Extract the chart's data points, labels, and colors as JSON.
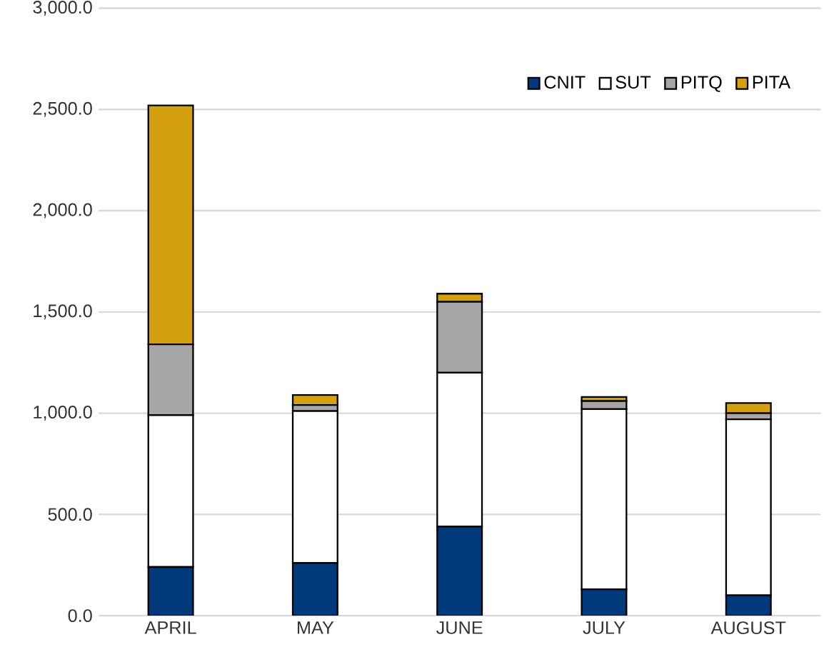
{
  "chart_data": {
    "type": "bar",
    "stacked": true,
    "categories": [
      "APRIL",
      "MAY",
      "JUNE",
      "JULY",
      "AUGUST"
    ],
    "series": [
      {
        "name": "CNIT",
        "color": "#003a7d",
        "values": [
          240,
          260,
          440,
          130,
          100
        ]
      },
      {
        "name": "SUT",
        "color": "#ffffff",
        "values": [
          750,
          750,
          760,
          890,
          870
        ]
      },
      {
        "name": "PITQ",
        "color": "#a6a6a6",
        "values": [
          350,
          30,
          350,
          40,
          30
        ]
      },
      {
        "name": "PITA",
        "color": "#d4a010",
        "values": [
          1180,
          50,
          40,
          20,
          50
        ]
      }
    ],
    "ylim": [
      0,
      3000
    ],
    "yticks": [
      {
        "value": 0,
        "label": "0.0"
      },
      {
        "value": 500,
        "label": "500.0"
      },
      {
        "value": 1000,
        "label": "1,000.0"
      },
      {
        "value": 1500,
        "label": "1,500.0"
      },
      {
        "value": 2000,
        "label": "2,000.0"
      },
      {
        "value": 2500,
        "label": "2,500.0"
      },
      {
        "value": 3000,
        "label": "3,000.0"
      }
    ],
    "grid": "y",
    "legend": "top right"
  }
}
